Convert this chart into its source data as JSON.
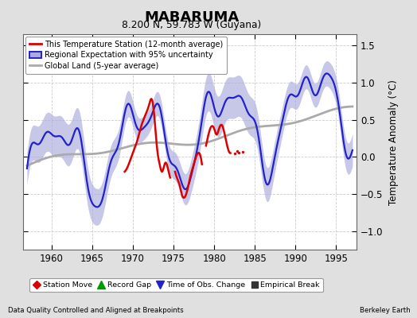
{
  "title": "MABARUMA",
  "subtitle": "8.200 N, 59.783 W (Guyana)",
  "ylabel": "Temperature Anomaly (°C)",
  "xlabel_note": "Data Quality Controlled and Aligned at Breakpoints",
  "credit": "Berkeley Earth",
  "xlim": [
    1956.5,
    1997.5
  ],
  "ylim": [
    -1.25,
    1.65
  ],
  "yticks": [
    -1.0,
    -0.5,
    0.0,
    0.5,
    1.0,
    1.5
  ],
  "xticks": [
    1960,
    1965,
    1970,
    1975,
    1980,
    1985,
    1990,
    1995
  ],
  "bg_color": "#e0e0e0",
  "plot_bg_color": "#ffffff",
  "blue_line_color": "#2222cc",
  "blue_fill_color": "#aaaadd",
  "red_line_color": "#dd0000",
  "gray_line_color": "#aaaaaa",
  "legend_items": [
    {
      "label": "This Temperature Station (12-month average)",
      "color": "#dd0000"
    },
    {
      "label": "Regional Expectation with 95% uncertainty",
      "color": "#2222cc"
    },
    {
      "label": "Global Land (5-year average)",
      "color": "#aaaaaa"
    }
  ],
  "bottom_legend": [
    {
      "label": "Station Move",
      "marker": "D",
      "color": "#dd0000"
    },
    {
      "label": "Record Gap",
      "marker": "^",
      "color": "#009900"
    },
    {
      "label": "Time of Obs. Change",
      "marker": "v",
      "color": "#2222cc"
    },
    {
      "label": "Empirical Break",
      "marker": "s",
      "color": "#333333"
    }
  ]
}
